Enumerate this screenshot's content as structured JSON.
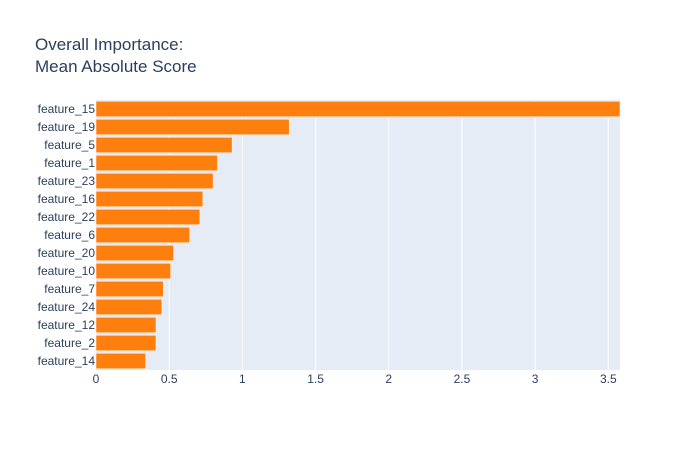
{
  "chart_data": {
    "type": "bar",
    "orientation": "horizontal",
    "title_lines": [
      "Overall Importance:",
      "Mean Absolute Score"
    ],
    "categories": [
      "feature_15",
      "feature_19",
      "feature_5",
      "feature_1",
      "feature_23",
      "feature_16",
      "feature_22",
      "feature_6",
      "feature_20",
      "feature_10",
      "feature_7",
      "feature_24",
      "feature_12",
      "feature_2",
      "feature_14"
    ],
    "values": [
      3.58,
      1.32,
      0.93,
      0.83,
      0.8,
      0.73,
      0.71,
      0.64,
      0.53,
      0.51,
      0.46,
      0.45,
      0.41,
      0.41,
      0.34
    ],
    "xlim": [
      0,
      3.58
    ],
    "xticks": [
      0,
      0.5,
      1,
      1.5,
      2,
      2.5,
      3,
      3.5
    ],
    "xtick_labels": [
      "0",
      "0.5",
      "1",
      "1.5",
      "2",
      "2.5",
      "3",
      "3.5"
    ],
    "xlabel": "",
    "ylabel": "",
    "grid": true,
    "legend": "none",
    "colors": {
      "bar": "#ff7f0e",
      "plot_background": "#e5ecf6",
      "grid": "#ffffff",
      "text": "#2a3f5f"
    }
  }
}
